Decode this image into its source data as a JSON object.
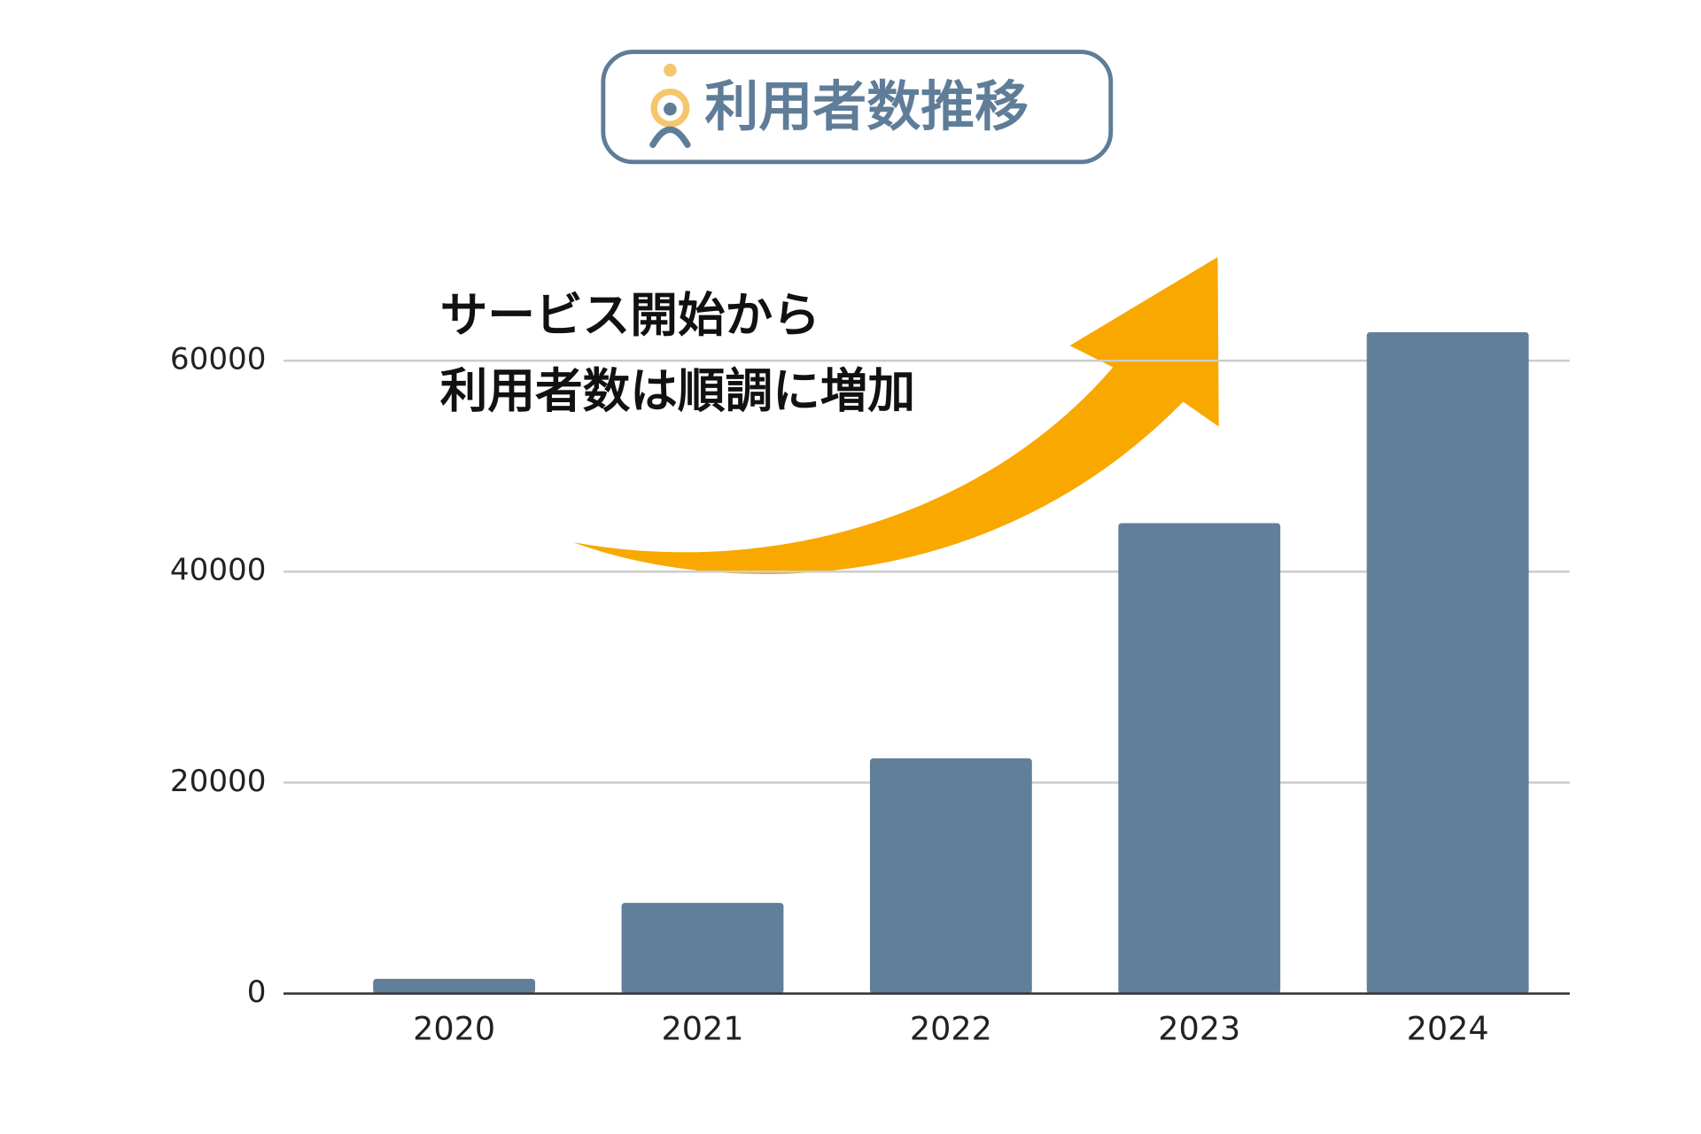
{
  "chart_data": {
    "type": "bar",
    "title": "利用者数推移",
    "annotation": [
      "サービス開始から",
      "利用者数は順調に増加"
    ],
    "categories": [
      "2020",
      "2021",
      "2022",
      "2023",
      "2024"
    ],
    "values": [
      1400,
      8600,
      22300,
      44600,
      62700
    ],
    "color": "#627f99",
    "ylim": [
      0,
      70000
    ],
    "yticks": [
      0,
      20000,
      40000,
      60000
    ],
    "grid": true
  }
}
